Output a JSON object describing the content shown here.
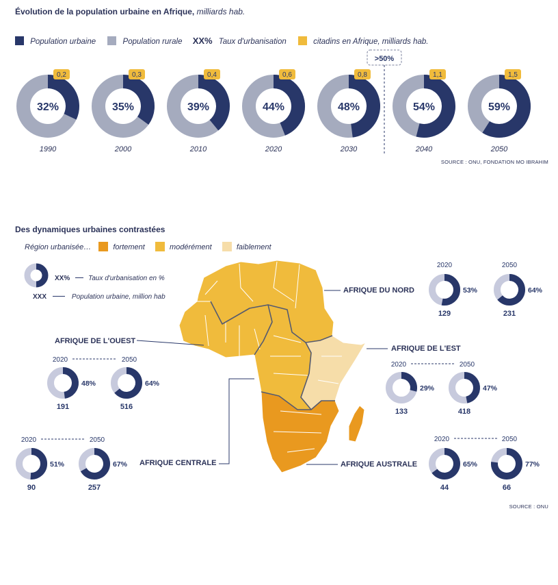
{
  "colors": {
    "urban": "#283769",
    "rural": "#a5abbe",
    "accent": "#f0bb3c",
    "strong": "#e9991f",
    "moderate": "#f0bb3c",
    "weak": "#f6dda9",
    "light_ring": "#c7cadd"
  },
  "top": {
    "title_bold": "Évolution de la population urbaine en Afrique,",
    "title_italic": " milliards hab.",
    "legend": {
      "urban": "Population urbaine",
      "rural": "Population rurale",
      "xx": "XX%",
      "rate": "Taux d'urbanisation",
      "citadins": "citadins en Afrique, milliards hab."
    },
    "threshold": ">50%",
    "source": "SOURCE : ONU, FONDATION MO IBRAHIM"
  },
  "chart_data": {
    "type": "pie",
    "categories": [
      "1990",
      "2000",
      "2010",
      "2020",
      "2030",
      "2040",
      "2050"
    ],
    "urbanisation_pct": [
      32,
      35,
      39,
      44,
      48,
      54,
      59
    ],
    "urbanisation_labels": [
      "32%",
      "35%",
      "39%",
      "44%",
      "48%",
      "54%",
      "59%"
    ],
    "citadins_bn": [
      "0,2",
      "0,3",
      "0,4",
      "0,6",
      "0,8",
      "1,1",
      "1,5"
    ]
  },
  "bottom": {
    "title": "Des dynamiques urbaines contrastées",
    "legend_label": "Région urbanisée…",
    "strong": "fortement",
    "moderate": "modérément",
    "weak": "faiblement",
    "key_pct": "XX%",
    "key_pct_label": "Taux d'urbanisation en %",
    "key_num": "XXX",
    "key_num_label": "Population urbaine, million hab",
    "source": "SOURCE : ONU"
  },
  "regions": [
    {
      "name": "AFRIQUE DU NORD",
      "y1": "2020",
      "y2": "2050",
      "p1": 53,
      "p1_label": "53%",
      "p2": 64,
      "p2_label": "64%",
      "n1": "129",
      "n2": "231"
    },
    {
      "name": "AFRIQUE DE L'OUEST",
      "y1": "2020",
      "y2": "2050",
      "p1": 48,
      "p1_label": "48%",
      "p2": 64,
      "p2_label": "64%",
      "n1": "191",
      "n2": "516"
    },
    {
      "name": "AFRIQUE DE L'EST",
      "y1": "2020",
      "y2": "2050",
      "p1": 29,
      "p1_label": "29%",
      "p2": 47,
      "p2_label": "47%",
      "n1": "133",
      "n2": "418"
    },
    {
      "name": "AFRIQUE CENTRALE",
      "y1": "2020",
      "y2": "2050",
      "p1": 51,
      "p1_label": "51%",
      "p2": 67,
      "p2_label": "67%",
      "n1": "90",
      "n2": "257"
    },
    {
      "name": "AFRIQUE AUSTRALE",
      "y1": "2020",
      "y2": "2050",
      "p1": 65,
      "p1_label": "65%",
      "p2": 77,
      "p2_label": "77%",
      "n1": "44",
      "n2": "66"
    }
  ]
}
